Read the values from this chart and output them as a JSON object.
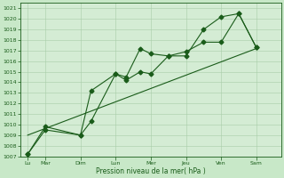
{
  "xlabel": "Pression niveau de la mer( hPa )",
  "bg_color": "#c8e8c8",
  "plot_bg_color": "#d4ecd4",
  "line_color": "#1a5c1a",
  "grid_color": "#a8cca8",
  "ylim": [
    1007,
    1021.5
  ],
  "yticks": [
    1007,
    1008,
    1009,
    1010,
    1011,
    1012,
    1013,
    1014,
    1015,
    1016,
    1017,
    1018,
    1019,
    1020,
    1021
  ],
  "xlim": [
    -0.2,
    7.2
  ],
  "xtick_positions": [
    0,
    0.5,
    1.5,
    2.5,
    3.5,
    4.5,
    5.5,
    6.5
  ],
  "xtick_labels": [
    "Lu",
    "Mar",
    "Dim",
    "Lun",
    "Mer",
    "Jeu",
    "Ven",
    "Sam"
  ],
  "series1_x": [
    0,
    0.5,
    1.5,
    1.8,
    2.5,
    2.8,
    3.2,
    3.5,
    4.0,
    4.5,
    5.0,
    5.5,
    6.0,
    6.5
  ],
  "series1_y": [
    1007.2,
    1009.8,
    1009.0,
    1010.3,
    1014.8,
    1014.5,
    1017.2,
    1016.7,
    1016.5,
    1016.9,
    1017.8,
    1017.8,
    1020.5,
    1017.3
  ],
  "series2_x": [
    0,
    0.5,
    1.5,
    1.8,
    2.5,
    2.8,
    3.2,
    3.5,
    4.0,
    4.5,
    5.0,
    5.5,
    6.0,
    6.5
  ],
  "series2_y": [
    1007.2,
    1009.5,
    1009.0,
    1013.2,
    1014.8,
    1014.2,
    1015.0,
    1014.8,
    1016.5,
    1016.5,
    1019.0,
    1020.2,
    1020.5,
    1017.3
  ],
  "series3_x": [
    0,
    6.5
  ],
  "series3_y": [
    1009.0,
    1017.2
  ],
  "marker": "D",
  "marker_size": 2.5,
  "linewidth": 0.8
}
